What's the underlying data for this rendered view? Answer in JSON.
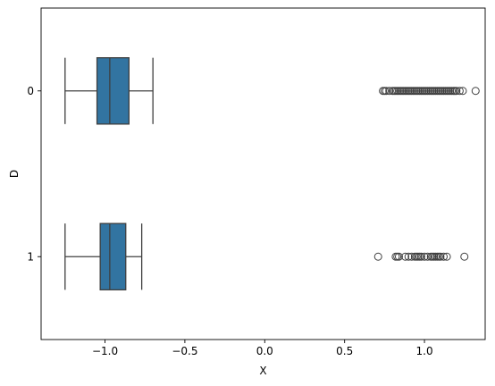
{
  "chart_data": {
    "type": "boxplot",
    "orientation": "horizontal",
    "title": "",
    "xlabel": "X",
    "ylabel": "D",
    "xlim": [
      -1.4,
      1.38
    ],
    "x_ticks": [
      -1.0,
      -0.5,
      0.0,
      0.5,
      1.0
    ],
    "x_tick_labels": [
      "−1.0",
      "−0.5",
      "0.0",
      "0.5",
      "1.0"
    ],
    "categories": [
      "0",
      "1"
    ],
    "grid": false,
    "box_color": "#3274a1",
    "line_color": "#3f3f3f",
    "groups": [
      {
        "category": "0",
        "whisker_low": -1.25,
        "q1": -1.05,
        "median": -0.97,
        "q3": -0.85,
        "whisker_high": -0.7,
        "outliers": [
          0.74,
          0.75,
          0.76,
          0.78,
          0.8,
          0.81,
          0.82,
          0.83,
          0.84,
          0.85,
          0.86,
          0.87,
          0.88,
          0.89,
          0.9,
          0.91,
          0.92,
          0.93,
          0.94,
          0.95,
          0.96,
          0.97,
          0.98,
          0.99,
          1.0,
          1.01,
          1.02,
          1.03,
          1.04,
          1.05,
          1.06,
          1.07,
          1.08,
          1.09,
          1.1,
          1.11,
          1.12,
          1.13,
          1.14,
          1.15,
          1.16,
          1.17,
          1.18,
          1.19,
          1.2,
          1.22,
          1.24,
          1.32
        ]
      },
      {
        "category": "1",
        "whisker_low": -1.25,
        "q1": -1.03,
        "median": -0.97,
        "q3": -0.87,
        "whisker_high": -0.77,
        "outliers": [
          0.71,
          0.82,
          0.83,
          0.84,
          0.88,
          0.9,
          0.92,
          0.94,
          0.95,
          0.96,
          0.97,
          0.98,
          1.0,
          1.02,
          1.04,
          1.05,
          1.06,
          1.07,
          1.08,
          1.09,
          1.1,
          1.12,
          1.14,
          1.25
        ]
      }
    ]
  }
}
